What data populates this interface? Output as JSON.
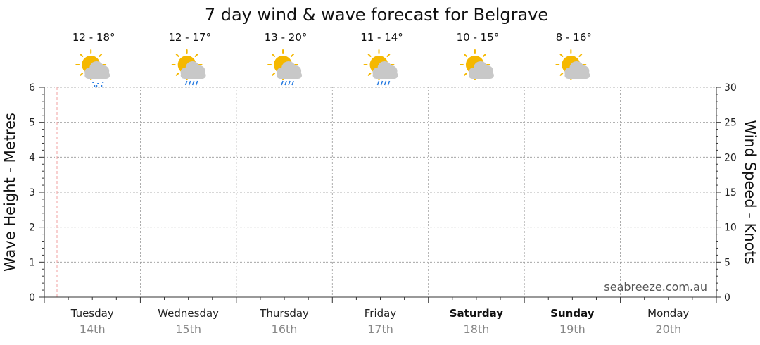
{
  "chart_data": {
    "type": "line",
    "title": "7 day wind & wave forecast for Belgrave",
    "ylabel_left": "Wave Height - Metres",
    "ylabel_right": "Wind Speed - Knots",
    "ylim_left": [
      0,
      6
    ],
    "ylim_right": [
      0,
      30
    ],
    "yticks_left": [
      "0",
      "1",
      "2",
      "3",
      "4",
      "5",
      "6"
    ],
    "yticks_right": [
      "0",
      "5",
      "10",
      "15",
      "20",
      "25",
      "30"
    ],
    "grid": true,
    "days": [
      {
        "day": "Tuesday",
        "date": "14th",
        "temp": "12 - 18°",
        "weekend": false,
        "icon": "sun-cloud-showers-icon"
      },
      {
        "day": "Wednesday",
        "date": "15th",
        "temp": "12 - 17°",
        "weekend": false,
        "icon": "sun-cloud-rain-icon"
      },
      {
        "day": "Thursday",
        "date": "16th",
        "temp": "13 - 20°",
        "weekend": false,
        "icon": "sun-cloud-rain-icon"
      },
      {
        "day": "Friday",
        "date": "17th",
        "temp": "11 - 14°",
        "weekend": false,
        "icon": "sun-cloud-rain-icon"
      },
      {
        "day": "Saturday",
        "date": "18th",
        "temp": "10 - 15°",
        "weekend": true,
        "icon": "sun-cloud-icon"
      },
      {
        "day": "Sunday",
        "date": "19th",
        "temp": "8 - 16°",
        "weekend": true,
        "icon": "sun-cloud-icon"
      },
      {
        "day": "Monday",
        "date": "20th",
        "temp": "",
        "weekend": false,
        "icon": ""
      }
    ],
    "series": []
  },
  "watermark": "seabreeze.com.au",
  "colors": {
    "sun": "#f5b800",
    "cloud": "#c8c8c8",
    "rain": "#2a7de1",
    "now_marker": "#f0a0a0",
    "grid": "#999999"
  }
}
